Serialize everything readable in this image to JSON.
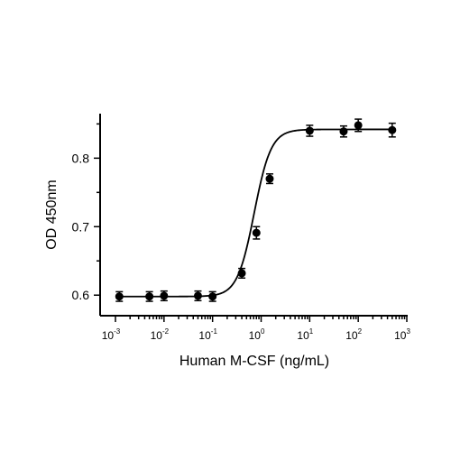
{
  "chart_data": {
    "type": "scatter",
    "title": "",
    "xlabel": "Human M-CSF (ng/mL)",
    "ylabel": "OD 450nm",
    "xscale": "log",
    "xlim": [
      0.001,
      1000
    ],
    "ylim": [
      0.57,
      0.865
    ],
    "x_ticks": [
      {
        "base": "10",
        "exp": "-3"
      },
      {
        "base": "10",
        "exp": "-2"
      },
      {
        "base": "10",
        "exp": "-1"
      },
      {
        "base": "10",
        "exp": "0"
      },
      {
        "base": "10",
        "exp": "1"
      },
      {
        "base": "10",
        "exp": "2"
      },
      {
        "base": "10",
        "exp": "3"
      }
    ],
    "y_ticks": [
      "0.6",
      "0.7",
      "0.8"
    ],
    "y_tick_values": [
      0.6,
      0.7,
      0.8
    ],
    "grid": false,
    "fit_curve": {
      "bottom": 0.598,
      "top": 0.842,
      "ec50": 0.72,
      "hill": 2.5
    },
    "series": [
      {
        "marker": "filled-circle",
        "color": "#000000",
        "points": [
          {
            "x": 0.0012,
            "y": 0.598,
            "err": 0.007
          },
          {
            "x": 0.005,
            "y": 0.598,
            "err": 0.007
          },
          {
            "x": 0.01,
            "y": 0.599,
            "err": 0.007
          },
          {
            "x": 0.05,
            "y": 0.599,
            "err": 0.007
          },
          {
            "x": 0.1,
            "y": 0.598,
            "err": 0.007
          },
          {
            "x": 0.4,
            "y": 0.632,
            "err": 0.007
          },
          {
            "x": 0.8,
            "y": 0.691,
            "err": 0.009
          },
          {
            "x": 1.5,
            "y": 0.77,
            "err": 0.007
          },
          {
            "x": 10,
            "y": 0.84,
            "err": 0.008
          },
          {
            "x": 50,
            "y": 0.839,
            "err": 0.008
          },
          {
            "x": 100,
            "y": 0.848,
            "err": 0.009
          },
          {
            "x": 500,
            "y": 0.841,
            "err": 0.01
          }
        ]
      }
    ]
  }
}
